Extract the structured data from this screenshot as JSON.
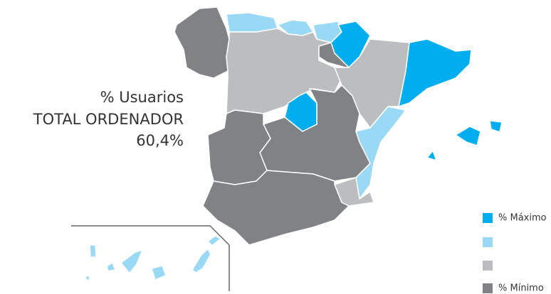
{
  "title": {
    "line1": "% Usuarios",
    "line2": "TOTAL ORDENADOR",
    "value": "60,4%"
  },
  "legend": [
    {
      "color": "#00aeef",
      "label": "% Máximo"
    },
    {
      "color": "#99d9f5"
    },
    {
      "color": "#bcbdc0"
    },
    {
      "color": "#808285",
      "label": "% Mínimo"
    }
  ]
}
